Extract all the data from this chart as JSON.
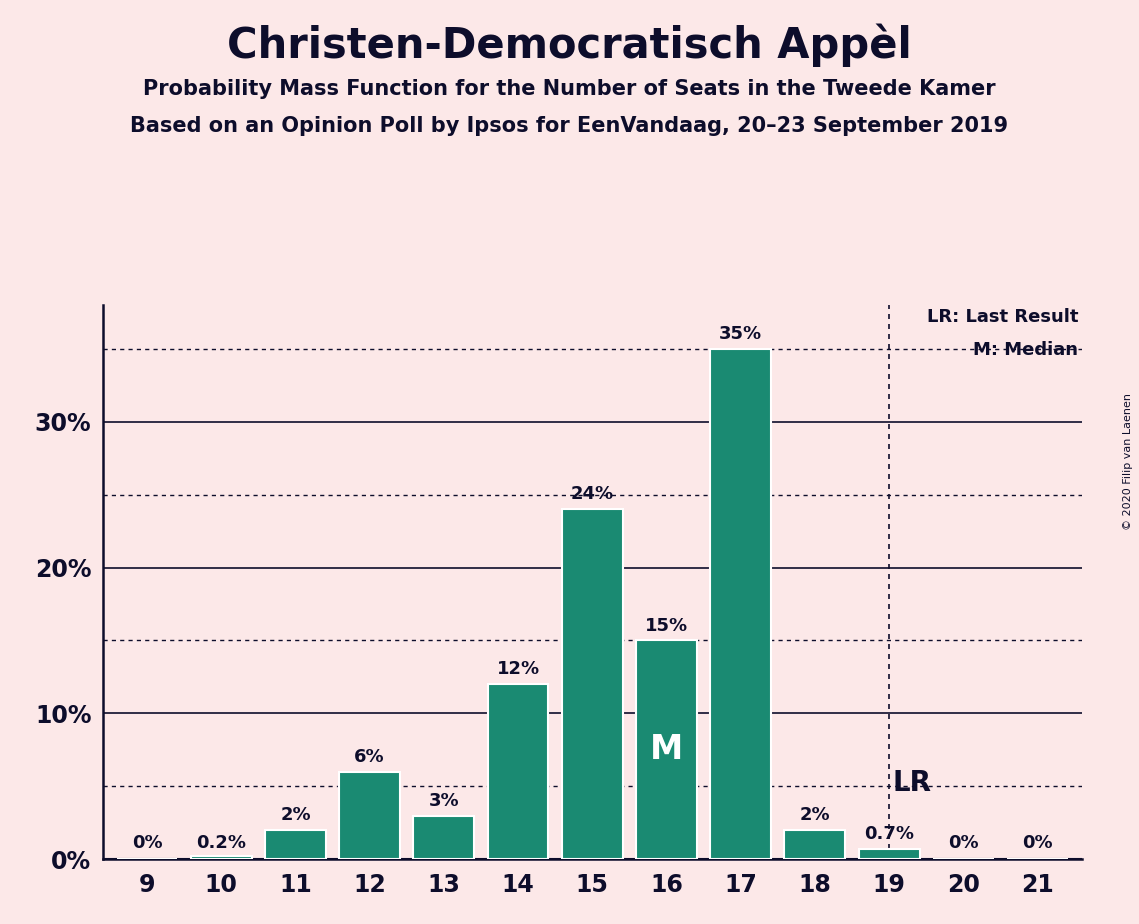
{
  "title": "Christen-Democratisch Appèl",
  "subtitle1": "Probability Mass Function for the Number of Seats in the Tweede Kamer",
  "subtitle2": "Based on an Opinion Poll by Ipsos for EenVandaag, 20–23 September 2019",
  "copyright": "© 2020 Filip van Laenen",
  "categories": [
    9,
    10,
    11,
    12,
    13,
    14,
    15,
    16,
    17,
    18,
    19,
    20,
    21
  ],
  "values": [
    0.0,
    0.2,
    2.0,
    6.0,
    3.0,
    12.0,
    24.0,
    15.0,
    35.0,
    2.0,
    0.7,
    0.0,
    0.0
  ],
  "bar_color": "#1a8a72",
  "background_color": "#fce8e8",
  "text_color": "#0d0d2b",
  "bar_labels": [
    "0%",
    "0.2%",
    "2%",
    "6%",
    "3%",
    "12%",
    "24%",
    "15%",
    "35%",
    "2%",
    "0.7%",
    "0%",
    "0%"
  ],
  "median_seat": 16,
  "last_result_seat": 19,
  "legend_lr": "LR: Last Result",
  "legend_m": "M: Median",
  "solid_yticks": [
    0,
    10,
    20,
    30
  ],
  "dotted_yticks": [
    5,
    15,
    25,
    35
  ],
  "ylim": [
    0,
    38
  ]
}
